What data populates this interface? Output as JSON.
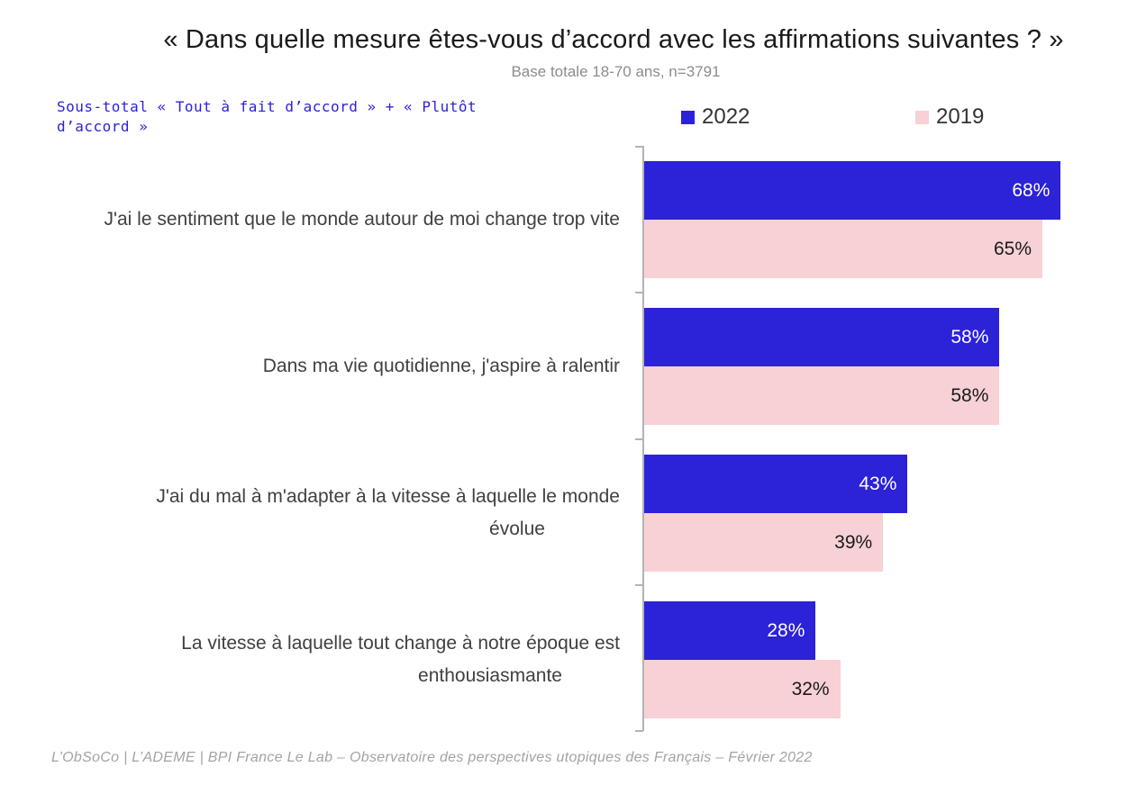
{
  "chart_data": {
    "type": "bar",
    "orientation": "horizontal",
    "title": "« Dans quelle mesure êtes-vous d’accord avec les affirmations suivantes ? »",
    "subtitle": "Base totale 18-70 ans, n=3791",
    "subtotal_label": "Sous-total « Tout à fait d’accord » + « Plutôt d’accord »",
    "categories": [
      "J'ai le sentiment que le monde autour de moi change trop vite",
      "Dans ma vie quotidienne, j'aspire à ralentir",
      "J'ai du mal à m'adapter à la vitesse à laquelle le monde évolue",
      "La vitesse à laquelle tout change à notre époque est enthousiasmante"
    ],
    "series": [
      {
        "name": "2022",
        "color": "#2c22d8",
        "values": [
          68,
          58,
          43,
          28
        ],
        "labels": [
          "68%",
          "58%",
          "43%",
          "28%"
        ]
      },
      {
        "name": "2019",
        "color": "#f7d1d5",
        "values": [
          65,
          58,
          39,
          32
        ],
        "labels": [
          "65%",
          "58%",
          "39%",
          "32%"
        ]
      }
    ],
    "xlim": [
      0,
      100
    ],
    "value_unit": "%",
    "legend_position": "top-right"
  },
  "footer": "L’ObSoCo | L’ADEME | BPI France Le Lab – Observatoire des perspectives utopiques des Français – Février 2022"
}
